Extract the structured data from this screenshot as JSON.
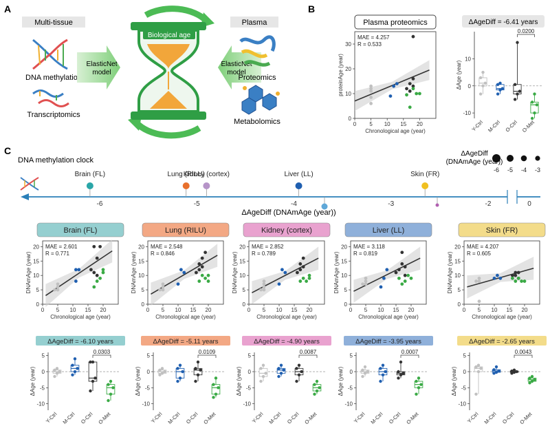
{
  "panel_a": {
    "label": "A",
    "left_header": "Multi-tissue",
    "right_header": "Plasma",
    "center_title": "Biological age",
    "left_items": [
      "DNA methylation",
      "Transcriptomics"
    ],
    "right_items": [
      "Proteomics",
      "Metabolomics"
    ],
    "left_model": [
      "ElasticNet",
      "model"
    ],
    "right_model": [
      "ElasticNet",
      "model"
    ]
  },
  "panel_b": {
    "label": "B",
    "scatter_title": "Plasma proteomics",
    "mae": "MAE = 4.257",
    "r": "R = 0.533",
    "box_title": "ΔAgeDiff = -6.41 years",
    "pvalue": "0.0200"
  },
  "panel_c": {
    "label": "C",
    "clock_title": "DNA methylation clock",
    "legend_title": [
      "ΔAgeDiff",
      "(DNAmAge (year))"
    ],
    "legend_values": [
      "-6",
      "-5",
      "-4",
      "-3"
    ],
    "axis_title": "ΔAgeDiff (DNAmAge (year))",
    "axis_ticks": [
      "-6",
      "-5",
      "-4",
      "-3",
      "-2",
      "0"
    ],
    "tissues_on_axis": [
      "Brain (FL)",
      "Lung (RILU)",
      "Kidney (cortex)",
      "Liver (LL)",
      "Skin (FR)"
    ]
  },
  "chart_data": [
    {
      "type": "scatter",
      "panel": "B",
      "title": "Plasma proteomics",
      "xlabel": "Chronological age (year)",
      "ylabel": "proteinAge (year)",
      "xlim": [
        0,
        25
      ],
      "ylim": [
        0,
        35
      ],
      "xticks": [
        "0",
        "5",
        "10",
        "15",
        "20"
      ],
      "yticks": [
        "0",
        "10",
        "20",
        "30"
      ],
      "mae": "MAE = 4.257",
      "r": "R = 0.533",
      "fit": [
        [
          0,
          7
        ],
        [
          23,
          19.5
        ]
      ],
      "series": [
        {
          "name": "Y-Ctrl",
          "color": "#c0c0c0",
          "points": [
            [
              5,
              6
            ],
            [
              5,
              8.5
            ],
            [
              5,
              11
            ],
            [
              5,
              12
            ],
            [
              5,
              13
            ]
          ]
        },
        {
          "name": "M-Ctrl",
          "color": "#1f5fb0",
          "points": [
            [
              11,
              9
            ],
            [
              12,
              13
            ],
            [
              13,
              14
            ]
          ]
        },
        {
          "name": "O-Ctrl",
          "color": "#333333",
          "points": [
            [
              16,
              12
            ],
            [
              17,
              11
            ],
            [
              17,
              14
            ],
            [
              18,
              13
            ],
            [
              18,
              16
            ],
            [
              18,
              33
            ]
          ]
        },
        {
          "name": "O-Met",
          "color": "#3aaa45",
          "points": [
            [
              16,
              9.5
            ],
            [
              17,
              4.5
            ],
            [
              18,
              12
            ],
            [
              19,
              10
            ],
            [
              20,
              10
            ]
          ]
        }
      ]
    },
    {
      "type": "box",
      "panel": "B",
      "title": "ΔAgeDiff = -6.41 years",
      "ylabel": "ΔAge (year)",
      "ylim": [
        -12,
        20
      ],
      "yticks": [
        "-10",
        "0",
        "10"
      ],
      "categories": [
        "Y-Ctrl",
        "M-Ctrl",
        "O-Ctrl",
        "O-Met"
      ],
      "pvalue": "0.0200",
      "values": [
        [
          -3,
          0,
          1,
          3,
          5
        ],
        [
          -3,
          -1.5,
          -1,
          0.5,
          1
        ],
        [
          -5,
          -3,
          -2,
          0.5,
          16
        ],
        [
          -12,
          -10,
          -7,
          -6,
          -3
        ]
      ]
    },
    {
      "type": "scatter",
      "panel": "C",
      "title": "Brain (FL)",
      "color": "#95cfd0",
      "xlabel": "Chronological age (year)",
      "ylabel": "DNAmAge (year)",
      "xlim": [
        0,
        25
      ],
      "ylim": [
        0,
        22
      ],
      "xticks": [
        "0",
        "5",
        "10",
        "15",
        "20"
      ],
      "yticks": [
        "0",
        "5",
        "10",
        "15",
        "20"
      ],
      "mae": "MAE = 2.601",
      "r": "R = 0.771",
      "fit": [
        [
          1,
          3
        ],
        [
          23,
          18.5
        ]
      ],
      "series": [
        {
          "name": "Y-Ctrl",
          "color": "#c0c0c0",
          "points": [
            [
              4,
              5
            ],
            [
              5,
              5
            ],
            [
              5,
              6
            ],
            [
              5,
              7
            ]
          ]
        },
        {
          "name": "M-Ctrl",
          "color": "#1f5fb0",
          "points": [
            [
              11,
              8
            ],
            [
              11,
              12
            ],
            [
              12,
              12
            ]
          ]
        },
        {
          "name": "O-Ctrl",
          "color": "#333333",
          "points": [
            [
              16,
              12
            ],
            [
              17,
              11
            ],
            [
              17,
              20
            ],
            [
              18,
              16
            ],
            [
              19,
              20
            ],
            [
              18,
              10
            ]
          ]
        },
        {
          "name": "O-Met",
          "color": "#3aaa45",
          "points": [
            [
              17,
              6
            ],
            [
              18,
              8
            ],
            [
              19,
              9
            ],
            [
              20,
              11
            ],
            [
              20,
              12
            ]
          ]
        }
      ],
      "box_title": "ΔAgeDiff = -6.10 years",
      "pvalue": "0.0303",
      "box_ylim": [
        -12,
        6
      ],
      "box_yticks": [
        "-10",
        "-5",
        "0",
        "5"
      ],
      "categories": [
        "Y-Ctrl",
        "M-Ctrl",
        "O-Ctrl",
        "O-Met"
      ],
      "box_values": [
        [
          -1.5,
          -0.5,
          0,
          0.5,
          1
        ],
        [
          -1,
          0,
          1,
          2,
          4
        ],
        [
          -6,
          -3,
          -2,
          3,
          3
        ],
        [
          -9,
          -7,
          -5,
          -4,
          -3
        ]
      ]
    },
    {
      "type": "scatter",
      "panel": "C",
      "title": "Lung (RILU)",
      "color": "#f3a884",
      "xlabel": "Chronological age (year)",
      "ylabel": "DNAmAge (year)",
      "xlim": [
        0,
        25
      ],
      "ylim": [
        0,
        22
      ],
      "xticks": [
        "0",
        "5",
        "10",
        "15",
        "20"
      ],
      "yticks": [
        "0",
        "5",
        "10",
        "15",
        "20"
      ],
      "mae": "MAE = 2.548",
      "r": "R = 0.846",
      "fit": [
        [
          1,
          3.5
        ],
        [
          23,
          17
        ]
      ],
      "series": [
        {
          "name": "Y-Ctrl",
          "color": "#c0c0c0",
          "points": [
            [
              4,
              5
            ],
            [
              5,
              5
            ],
            [
              5,
              6
            ],
            [
              5,
              7
            ]
          ]
        },
        {
          "name": "M-Ctrl",
          "color": "#1f5fb0",
          "points": [
            [
              10,
              7
            ],
            [
              11,
              12
            ],
            [
              12,
              11
            ]
          ]
        },
        {
          "name": "O-Ctrl",
          "color": "#333333",
          "points": [
            [
              16,
              11
            ],
            [
              17,
              12
            ],
            [
              17,
              14
            ],
            [
              18,
              16
            ],
            [
              19,
              18
            ],
            [
              18,
              13
            ]
          ]
        },
        {
          "name": "O-Met",
          "color": "#3aaa45",
          "points": [
            [
              17,
              8
            ],
            [
              18,
              10
            ],
            [
              19,
              9
            ],
            [
              20,
              8
            ],
            [
              20,
              10
            ]
          ]
        }
      ],
      "box_title": "ΔAgeDiff = -5.11 years",
      "pvalue": "0.0109",
      "box_ylim": [
        -12,
        6
      ],
      "box_yticks": [
        "-10",
        "-5",
        "0",
        "5"
      ],
      "categories": [
        "Y-Ctrl",
        "M-Ctrl",
        "O-Ctrl",
        "O-Met"
      ],
      "box_values": [
        [
          -1,
          -0.5,
          0,
          0.5,
          1
        ],
        [
          -3,
          -2,
          0,
          1,
          2
        ],
        [
          -3,
          -1,
          0.5,
          1,
          3
        ],
        [
          -8,
          -7,
          -5,
          -4,
          -2
        ]
      ]
    },
    {
      "type": "scatter",
      "panel": "C",
      "title": "Kidney (cortex)",
      "color": "#e9a2cf",
      "xlabel": "Chronological age (year)",
      "ylabel": "DNAmAge (year)",
      "xlim": [
        0,
        25
      ],
      "ylim": [
        0,
        22
      ],
      "xticks": [
        "0",
        "5",
        "10",
        "15",
        "20"
      ],
      "yticks": [
        "0",
        "5",
        "10",
        "15",
        "20"
      ],
      "mae": "MAE = 2.852",
      "r": "R = 0.789",
      "fit": [
        [
          1,
          4
        ],
        [
          23,
          16
        ]
      ],
      "series": [
        {
          "name": "Y-Ctrl",
          "color": "#c0c0c0",
          "points": [
            [
              4,
              5
            ],
            [
              5,
              5
            ],
            [
              5,
              6
            ],
            [
              5,
              7
            ],
            [
              5,
              8
            ]
          ]
        },
        {
          "name": "M-Ctrl",
          "color": "#1f5fb0",
          "points": [
            [
              10,
              7
            ],
            [
              11,
              12
            ],
            [
              12,
              11
            ]
          ]
        },
        {
          "name": "O-Ctrl",
          "color": "#333333",
          "points": [
            [
              16,
              11
            ],
            [
              17,
              12
            ],
            [
              17,
              14
            ],
            [
              18,
              16
            ],
            [
              18,
              13
            ]
          ]
        },
        {
          "name": "O-Met",
          "color": "#3aaa45",
          "points": [
            [
              17,
              8
            ],
            [
              18,
              9
            ],
            [
              19,
              8
            ],
            [
              20,
              9
            ],
            [
              20,
              10
            ]
          ]
        }
      ],
      "box_title": "ΔAgeDiff = -4.90 years",
      "pvalue": "0.0087",
      "box_ylim": [
        -12,
        6
      ],
      "box_yticks": [
        "-10",
        "-5",
        "0",
        "5"
      ],
      "categories": [
        "Y-Ctrl",
        "M-Ctrl",
        "O-Ctrl",
        "O-Met"
      ],
      "box_values": [
        [
          -3,
          -1.5,
          -0.5,
          1,
          2
        ],
        [
          -1.5,
          -0.5,
          0.5,
          1,
          2
        ],
        [
          -3,
          -1,
          0,
          1,
          2
        ],
        [
          -7,
          -6,
          -5,
          -4,
          -3
        ]
      ]
    },
    {
      "type": "scatter",
      "panel": "C",
      "title": "Liver (LL)",
      "color": "#8fb0da",
      "xlabel": "Chronological age (year)",
      "ylabel": "DNAmAge (year)",
      "xlim": [
        0,
        25
      ],
      "ylim": [
        0,
        22
      ],
      "xticks": [
        "0",
        "5",
        "10",
        "15",
        "20"
      ],
      "yticks": [
        "0",
        "5",
        "10",
        "15",
        "20"
      ],
      "mae": "MAE = 3.118",
      "r": "R = 0.819",
      "fit": [
        [
          1,
          4.5
        ],
        [
          23,
          16
        ]
      ],
      "series": [
        {
          "name": "Y-Ctrl",
          "color": "#c0c0c0",
          "points": [
            [
              4,
              7
            ],
            [
              5,
              7
            ],
            [
              5,
              8
            ],
            [
              5,
              9
            ]
          ]
        },
        {
          "name": "M-Ctrl",
          "color": "#1f5fb0",
          "points": [
            [
              10,
              6
            ],
            [
              11,
              9
            ],
            [
              12,
              12
            ]
          ]
        },
        {
          "name": "O-Ctrl",
          "color": "#333333",
          "points": [
            [
              15,
              11
            ],
            [
              16,
              12
            ],
            [
              17,
              14
            ],
            [
              17,
              18
            ],
            [
              18,
              13
            ],
            [
              18,
              10
            ]
          ]
        },
        {
          "name": "O-Met",
          "color": "#3aaa45",
          "points": [
            [
              16,
              9
            ],
            [
              17,
              7
            ],
            [
              18,
              8
            ],
            [
              19,
              10
            ],
            [
              20,
              9
            ]
          ]
        }
      ],
      "box_title": "ΔAgeDiff = -3.95 years",
      "pvalue": "0.0007",
      "box_ylim": [
        -12,
        6
      ],
      "box_yticks": [
        "-10",
        "-5",
        "0",
        "5"
      ],
      "categories": [
        "Y-Ctrl",
        "M-Ctrl",
        "O-Ctrl",
        "O-Met"
      ],
      "box_values": [
        [
          -1.5,
          -0.5,
          0,
          0.5,
          1.5
        ],
        [
          -3,
          -1,
          0,
          1,
          2
        ],
        [
          -2,
          -1,
          -0.5,
          0,
          3
        ],
        [
          -7,
          -5,
          -4,
          -3,
          -2
        ]
      ]
    },
    {
      "type": "scatter",
      "panel": "C",
      "title": "Skin (FR)",
      "color": "#f3dc8a",
      "xlabel": "Chronological age (year)",
      "ylabel": "DNAmAge (year)",
      "xlim": [
        0,
        25
      ],
      "ylim": [
        0,
        22
      ],
      "xticks": [
        "0",
        "5",
        "10",
        "15",
        "20"
      ],
      "yticks": [
        "0",
        "5",
        "10",
        "15",
        "20"
      ],
      "mae": "MAE = 4.207",
      "r": "R = 0.605",
      "fit": [
        [
          1,
          6
        ],
        [
          23,
          12.5
        ]
      ],
      "series": [
        {
          "name": "Y-Ctrl",
          "color": "#c0c0c0",
          "points": [
            [
              4,
              8
            ],
            [
              5,
              8
            ],
            [
              5,
              9
            ],
            [
              5,
              1
            ]
          ]
        },
        {
          "name": "M-Ctrl",
          "color": "#1f5fb0",
          "points": [
            [
              10,
              9
            ],
            [
              11,
              10
            ],
            [
              12,
              9
            ]
          ]
        },
        {
          "name": "O-Ctrl",
          "color": "#333333",
          "points": [
            [
              16,
              10
            ],
            [
              17,
              11
            ],
            [
              17,
              10
            ],
            [
              18,
              11
            ],
            [
              18,
              9
            ]
          ]
        },
        {
          "name": "O-Met",
          "color": "#3aaa45",
          "points": [
            [
              16,
              9
            ],
            [
              17,
              8
            ],
            [
              18,
              9
            ],
            [
              19,
              8
            ],
            [
              20,
              8
            ]
          ]
        }
      ],
      "box_title": "ΔAgeDiff = -2.65 years",
      "pvalue": "0.0043",
      "box_ylim": [
        -12,
        6
      ],
      "box_yticks": [
        "-10",
        "-5",
        "0",
        "5"
      ],
      "categories": [
        "Y-Ctrl",
        "M-Ctrl",
        "O-Ctrl",
        "O-Met"
      ],
      "box_values": [
        [
          -7,
          0,
          1,
          1.5,
          2
        ],
        [
          -0.5,
          -0.2,
          0.2,
          0.6,
          1.5
        ],
        [
          -0.5,
          -0.2,
          0,
          0.2,
          0.5
        ],
        [
          -3.5,
          -3,
          -2.5,
          -2,
          -1.5
        ]
      ]
    }
  ]
}
